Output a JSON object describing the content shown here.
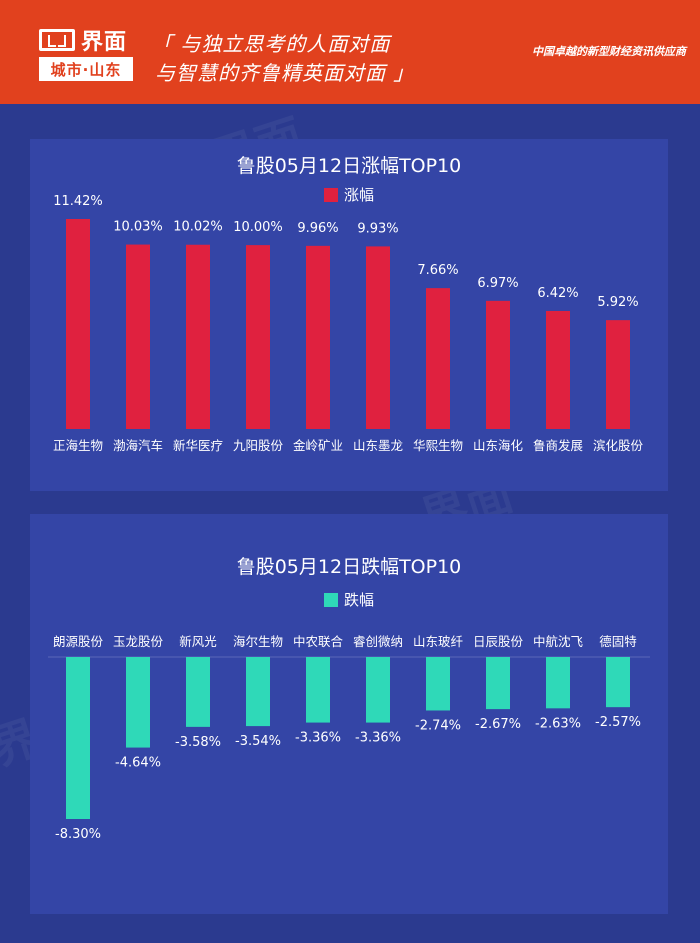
{
  "header": {
    "logo_name": "界面",
    "logo_sub": "城市·山东",
    "slogan_line1": "「 与独立思考的人面对面",
    "slogan_line2": "与智慧的齐鲁精英面对面 」",
    "tagline": "中国卓越的新型财经资讯供应商",
    "background_color": "#e1411e"
  },
  "colors": {
    "page_background": "#2b3a8f",
    "panel_background": "#3445a6",
    "gain_bar": "#e0213f",
    "loss_bar": "#2fd9b8"
  },
  "watermark": "界面",
  "chart_data": [
    {
      "type": "bar",
      "title": "鲁股05月12日涨幅TOP10",
      "legend": "涨幅",
      "legend_position": "top",
      "grid": false,
      "categories": [
        "正海生物",
        "渤海汽车",
        "新华医疗",
        "九阳股份",
        "金岭矿业",
        "山东墨龙",
        "华熙生物",
        "山东海化",
        "鲁商发展",
        "滨化股份"
      ],
      "series": [
        {
          "name": "涨幅",
          "values": [
            11.42,
            10.03,
            10.02,
            10.0,
            9.96,
            9.93,
            7.66,
            6.97,
            6.42,
            5.92
          ],
          "labels": [
            "11.42%",
            "10.03%",
            "10.02%",
            "10.00%",
            "9.96%",
            "9.93%",
            "7.66%",
            "6.97%",
            "6.42%",
            "5.92%"
          ]
        }
      ],
      "ylim": [
        0,
        11.42
      ]
    },
    {
      "type": "bar",
      "title": "鲁股05月12日跌幅TOP10",
      "legend": "跌幅",
      "legend_position": "top",
      "grid": false,
      "categories": [
        "朗源股份",
        "玉龙股份",
        "新风光",
        "海尔生物",
        "中农联合",
        "睿创微纳",
        "山东玻纤",
        "日辰股份",
        "中航沈飞",
        "德固特"
      ],
      "series": [
        {
          "name": "跌幅",
          "values": [
            -8.3,
            -4.64,
            -3.58,
            -3.54,
            -3.36,
            -3.36,
            -2.74,
            -2.67,
            -2.63,
            -2.57
          ],
          "labels": [
            "-8.30%",
            "-4.64%",
            "-3.58%",
            "-3.54%",
            "-3.36%",
            "-3.36%",
            "-2.74%",
            "-2.67%",
            "-2.63%",
            "-2.57%"
          ]
        }
      ],
      "ylim": [
        -8.3,
        0
      ]
    }
  ]
}
